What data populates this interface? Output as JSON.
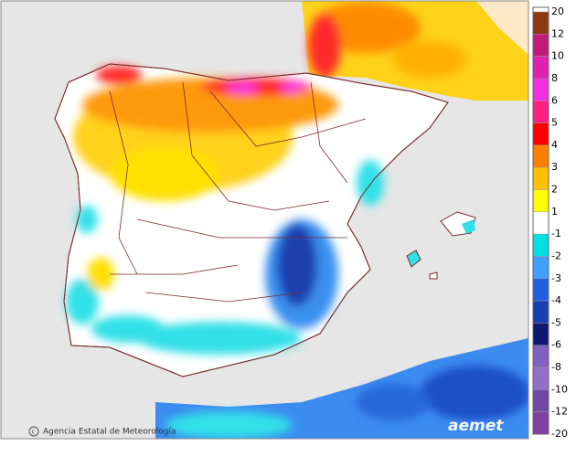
{
  "map": {
    "legend": {
      "ticks": [
        20,
        12,
        10,
        8,
        6,
        5,
        4,
        3,
        2,
        1,
        -1,
        -2,
        -3,
        -4,
        -5,
        -6,
        -8,
        -10,
        -12,
        -20
      ],
      "colors": [
        "#8b3a10",
        "#c01a7a",
        "#e020b0",
        "#f030e0",
        "#ff2080",
        "#ff0000",
        "#ff8000",
        "#ffc000",
        "#ffff00",
        "#ffffff",
        "#00e0e0",
        "#40a0ff",
        "#2060e0",
        "#1840b0",
        "#101870",
        "#8060c0",
        "#9070c8",
        "#7048a8",
        "#8040a0"
      ]
    },
    "credit": "Agencia Estatal de Meteorología",
    "logo": "aemet"
  }
}
